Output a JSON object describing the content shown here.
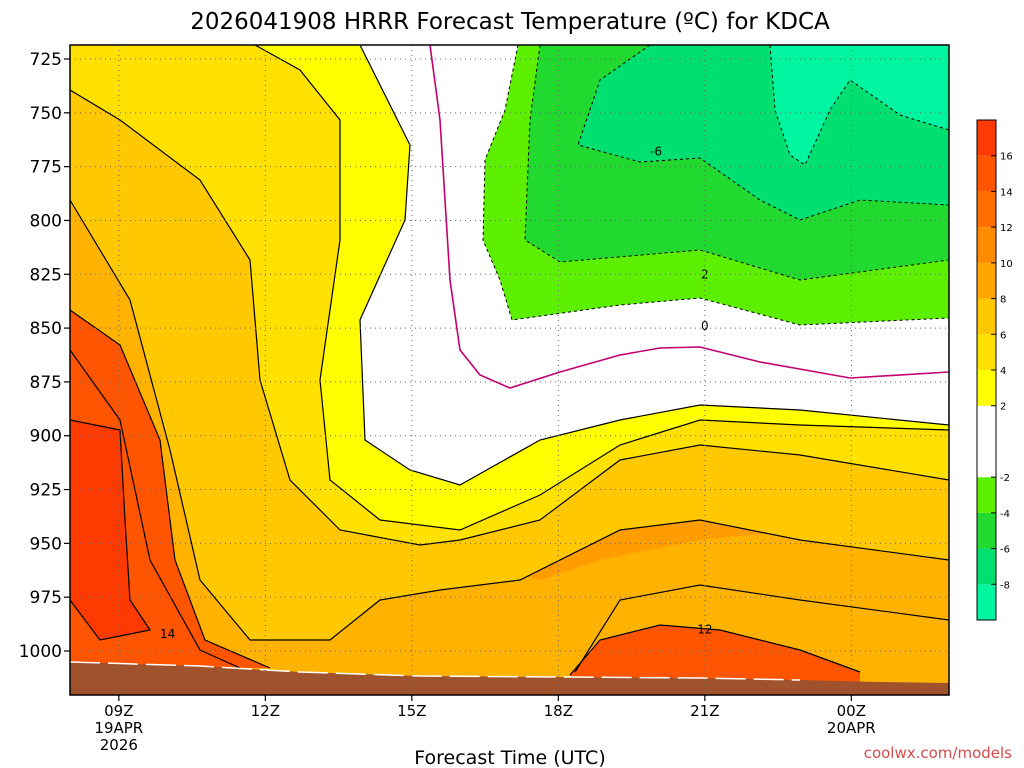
{
  "chart_data": {
    "type": "heatmap",
    "title": "2026041908 HRRR Forecast Temperature (ºC) for KDCA",
    "xlabel": "Forecast Time (UTC)",
    "ylabel": "",
    "x_ticks": [
      {
        "hour": 9,
        "lines": [
          "09Z",
          "19APR",
          "2026"
        ]
      },
      {
        "hour": 12,
        "lines": [
          "12Z"
        ]
      },
      {
        "hour": 15,
        "lines": [
          "15Z"
        ]
      },
      {
        "hour": 18,
        "lines": [
          "18Z"
        ]
      },
      {
        "hour": 21,
        "lines": [
          "21Z"
        ]
      },
      {
        "hour": 24,
        "lines": [
          "00Z",
          "20APR"
        ]
      }
    ],
    "x_range_hours": [
      8,
      26
    ],
    "y_ticks": [
      725,
      750,
      775,
      800,
      825,
      850,
      875,
      900,
      925,
      950,
      975,
      1000
    ],
    "y_range_hpa": [
      720,
      1020
    ],
    "y_scale": "pressure (inverted)",
    "grid": "dotted",
    "colorbar": {
      "levels": [
        -10,
        -8,
        -6,
        -4,
        -2,
        2,
        4,
        6,
        8,
        10,
        12,
        14,
        16,
        18
      ],
      "tick_labels": [
        "-8",
        "-6",
        "-4",
        "-2",
        "2",
        "4",
        "6",
        "8",
        "10",
        "12",
        "14",
        "16"
      ],
      "tick_values": [
        -8,
        -6,
        -4,
        -2,
        2,
        4,
        6,
        8,
        10,
        12,
        14,
        16
      ],
      "colors": [
        "#00f5a0",
        "#00e070",
        "#22d930",
        "#5cf000",
        "#ffffff",
        "#ffff00",
        "#ffe100",
        "#ffc800",
        "#ffa600",
        "#ff8c00",
        "#ff6e00",
        "#ff5500",
        "#ff3a00"
      ]
    },
    "contour_labels": [
      {
        "value": "-6",
        "hour": 20.0,
        "hpa": 768
      },
      {
        "value": "2",
        "hour": 21.0,
        "hpa": 825
      },
      {
        "value": "0",
        "hour": 21.0,
        "hpa": 849
      },
      {
        "value": "12",
        "hour": 21.0,
        "hpa": 990
      },
      {
        "value": "14",
        "hour": 10.0,
        "hpa": 992
      }
    ],
    "ground_color": "#a0522d"
  },
  "credit": "coolwx.com/models"
}
